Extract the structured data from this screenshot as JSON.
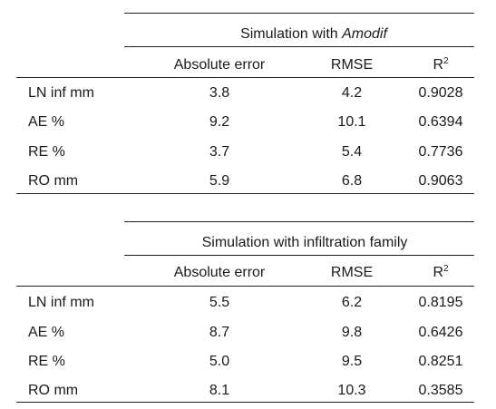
{
  "tables": [
    {
      "title_prefix": "Simulation with ",
      "title_emph": "Amodif",
      "columns": [
        "Absolute error",
        "RMSE",
        "R",
        "2"
      ],
      "rows": [
        {
          "label": "LN inf mm",
          "abs_error": "3.8",
          "rmse": "4.2",
          "r2": "0.9028"
        },
        {
          "label": "AE %",
          "abs_error": "9.2",
          "rmse": "10.1",
          "r2": "0.6394"
        },
        {
          "label": "RE %",
          "abs_error": "3.7",
          "rmse": "5.4",
          "r2": "0.7736"
        },
        {
          "label": "RO mm",
          "abs_error": "5.9",
          "rmse": "6.8",
          "r2": "0.9063"
        }
      ]
    },
    {
      "title_prefix": "Simulation with infiltration family",
      "title_emph": "",
      "columns": [
        "Absolute error",
        "RMSE",
        "R",
        "2"
      ],
      "rows": [
        {
          "label": "LN inf mm",
          "abs_error": "5.5",
          "rmse": "6.2",
          "r2": "0.8195"
        },
        {
          "label": "AE %",
          "abs_error": "8.7",
          "rmse": "9.8",
          "r2": "0.6426"
        },
        {
          "label": "RE %",
          "abs_error": "5.0",
          "rmse": "9.5",
          "r2": "0.8251"
        },
        {
          "label": "RO mm",
          "abs_error": "8.1",
          "rmse": "10.3",
          "r2": "0.3585"
        }
      ]
    }
  ]
}
